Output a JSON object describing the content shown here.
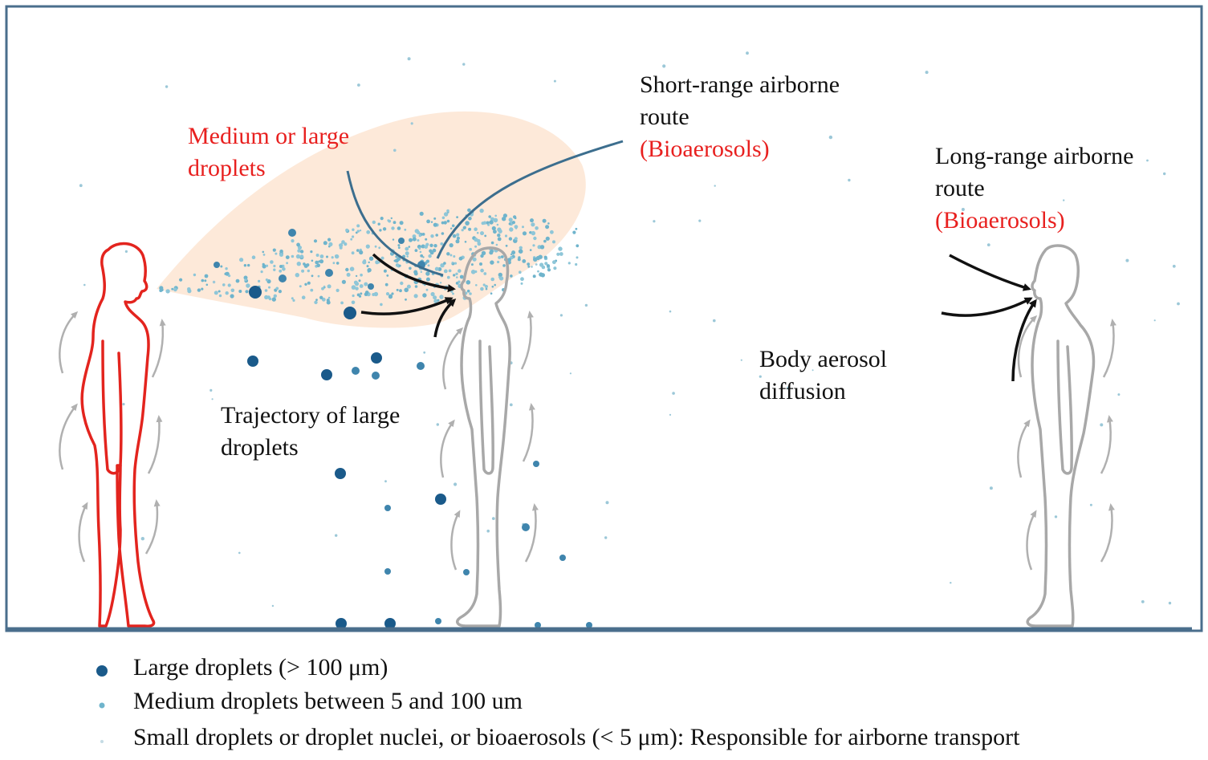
{
  "labels": {
    "medium_large": [
      "Medium or large",
      "droplets"
    ],
    "short_range": [
      "Short-range airborne",
      "route",
      "(Bioaerosols)"
    ],
    "long_range": [
      "Long-range airborne",
      "route",
      "(Bioaerosols)"
    ],
    "trajectory": [
      "Trajectory of large",
      "droplets"
    ],
    "body_aerosol": [
      "Body aerosol",
      "diffusion"
    ]
  },
  "legend": [
    {
      "text": "Large droplets (> 100 μm)",
      "icon": "large-droplet-icon"
    },
    {
      "text": "Medium droplets between 5 and 100 um",
      "icon": "medium-droplet-icon"
    },
    {
      "text": "Small droplets or droplet nuclei, or bioaerosols (< 5 μm): Responsible for airborne transport",
      "icon": "small-droplet-icon"
    }
  ],
  "colors": {
    "frame": "#4a6e8c",
    "emitter": "#e3241e",
    "person": "#a8a8a8",
    "large_droplet": "#1a5a8a",
    "medium_droplet": "#6fb4cc",
    "small_droplet": "#9cc8d8",
    "cloud": "#fde3cf",
    "label_red": "#e8201f"
  }
}
